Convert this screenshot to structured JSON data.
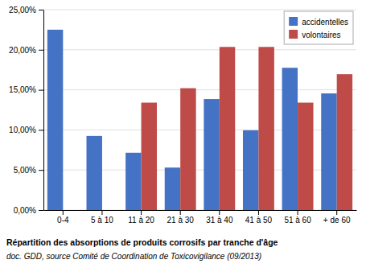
{
  "chart_data": {
    "type": "bar",
    "title": "Répartition des absorptions de produits corrosifs par tranche d'âge",
    "subtitle": "doc. GDD, source Comité de Coordination de Toxicovigilance (09/2013)",
    "categories": [
      "0-4",
      "5 à 10",
      "11 à 20",
      "21 à 30",
      "31 à 40",
      "41 à 50",
      "51 à 60",
      "+ de 60"
    ],
    "series": [
      {
        "name": "accidentelles",
        "color": "#4472C4",
        "values": [
          0.225,
          0.0925,
          0.0715,
          0.053,
          0.1385,
          0.0995,
          0.1775,
          0.1455
        ]
      },
      {
        "name": "volontaires",
        "color": "#BE4B48",
        "values": [
          0.0,
          0.0,
          0.134,
          0.152,
          0.2035,
          0.2035,
          0.134,
          0.1695
        ]
      }
    ],
    "ylim": [
      0,
      0.25
    ],
    "yticks": [
      {
        "value": 0.0,
        "label": "0,00%"
      },
      {
        "value": 0.05,
        "label": "5,00%"
      },
      {
        "value": 0.1,
        "label": "10,00%"
      },
      {
        "value": 0.15,
        "label": "15,00%"
      },
      {
        "value": 0.2,
        "label": "20,00%"
      },
      {
        "value": 0.25,
        "label": "25,00%"
      }
    ],
    "grid": true,
    "legend": "upper right"
  }
}
